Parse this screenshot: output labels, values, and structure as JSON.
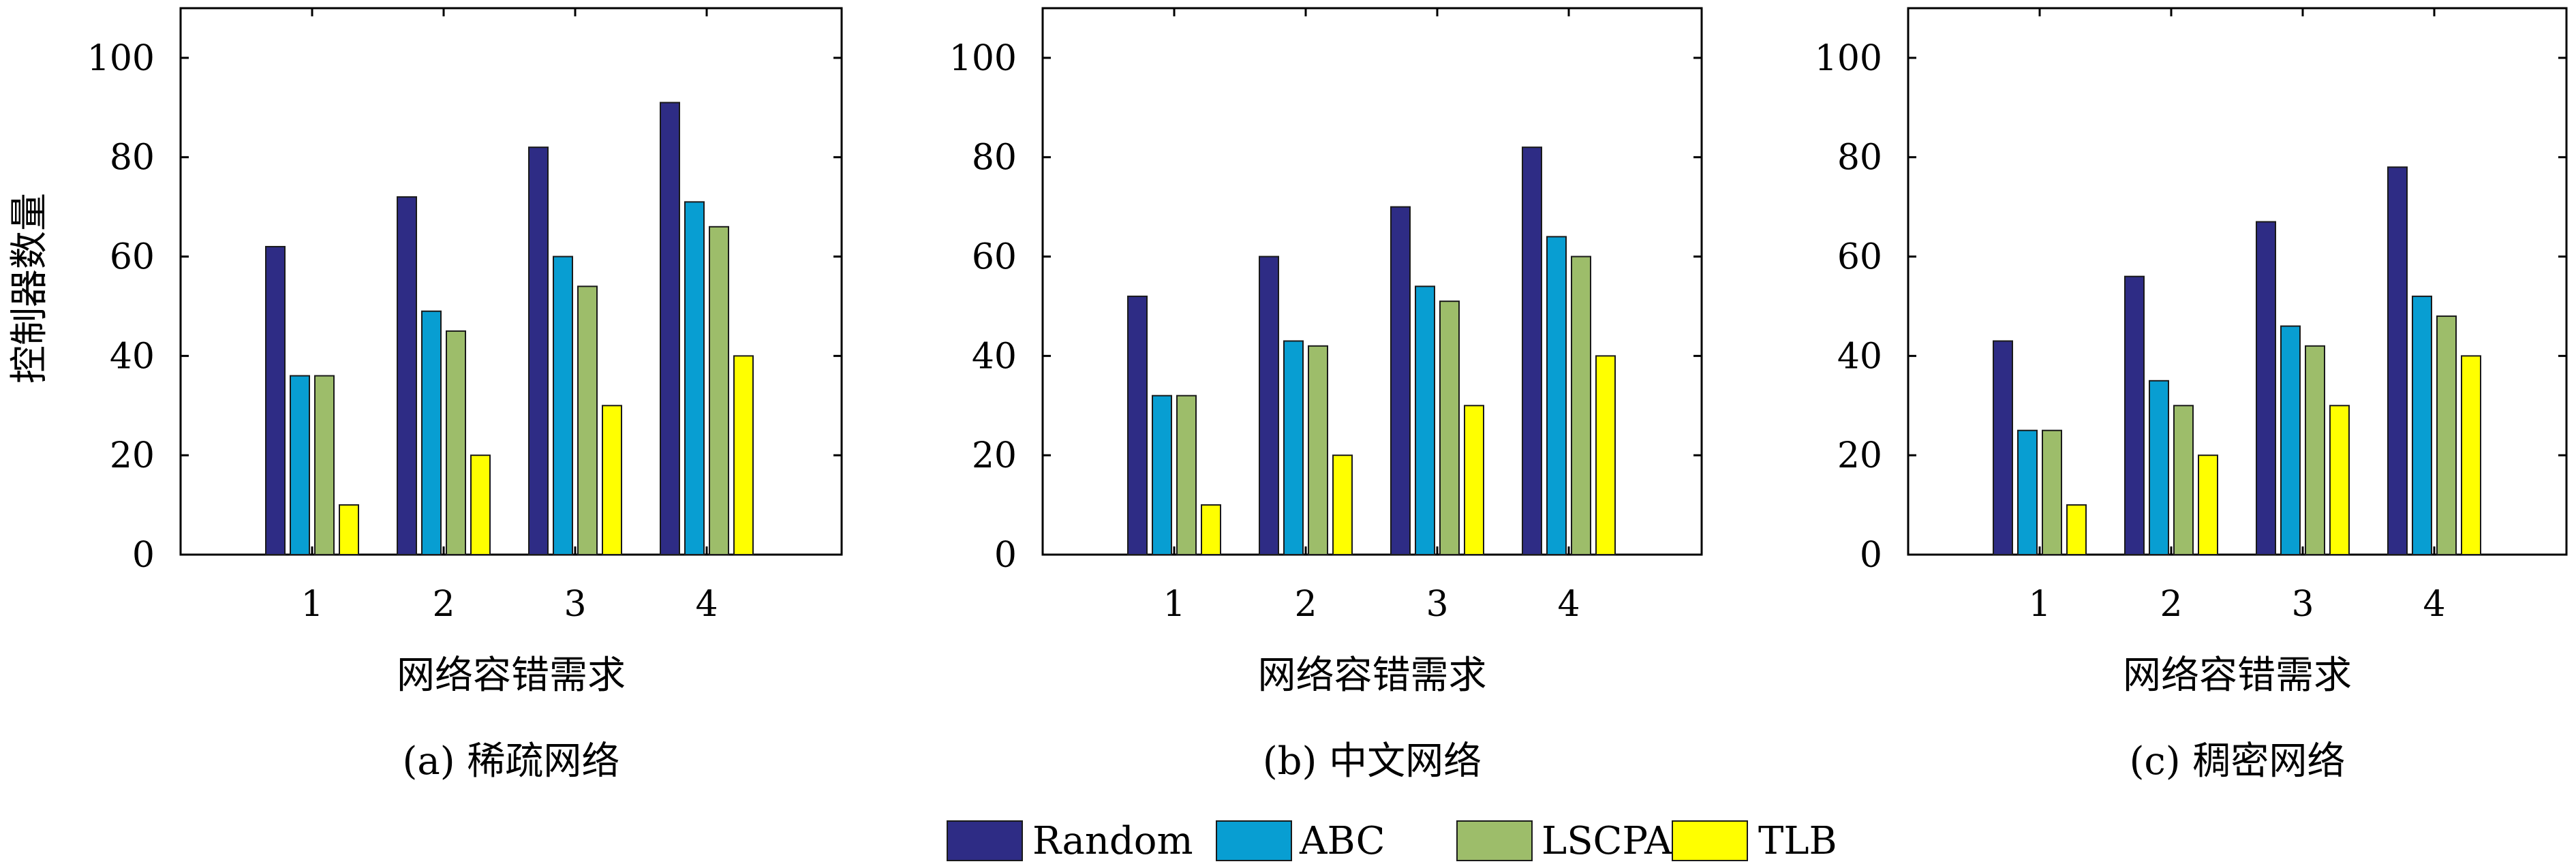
{
  "legend": [
    "Random",
    "ABC",
    "LSCPA",
    "TLB"
  ],
  "colors": {
    "Random": "#2e2c85",
    "ABC": "#089ed2",
    "LSCPA": "#9dbd6a",
    "TLB": "#ffff00"
  },
  "chart_data": [
    {
      "type": "bar",
      "categories": [
        "1",
        "2",
        "3",
        "4"
      ],
      "series": [
        {
          "name": "Random",
          "values": [
            62,
            72,
            82,
            91
          ]
        },
        {
          "name": "ABC",
          "values": [
            36,
            49,
            60,
            71
          ]
        },
        {
          "name": "LSCPA",
          "values": [
            36,
            45,
            54,
            66
          ]
        },
        {
          "name": "TLB",
          "values": [
            10,
            20,
            30,
            40
          ]
        }
      ],
      "ylim": [
        0,
        110
      ],
      "yticks": [
        0,
        20,
        40,
        60,
        80,
        100
      ],
      "xlabel": "网络容错需求",
      "ylabel": "控制器数量",
      "caption": "(a) 稀疏网络"
    },
    {
      "type": "bar",
      "categories": [
        "1",
        "2",
        "3",
        "4"
      ],
      "series": [
        {
          "name": "Random",
          "values": [
            52,
            60,
            70,
            82
          ]
        },
        {
          "name": "ABC",
          "values": [
            32,
            43,
            54,
            64
          ]
        },
        {
          "name": "LSCPA",
          "values": [
            32,
            42,
            51,
            60
          ]
        },
        {
          "name": "TLB",
          "values": [
            10,
            20,
            30,
            40
          ]
        }
      ],
      "ylim": [
        0,
        110
      ],
      "yticks": [
        0,
        20,
        40,
        60,
        80,
        100
      ],
      "xlabel": "网络容错需求",
      "ylabel": "",
      "caption": "(b) 中文网络"
    },
    {
      "type": "bar",
      "categories": [
        "1",
        "2",
        "3",
        "4"
      ],
      "series": [
        {
          "name": "Random",
          "values": [
            43,
            56,
            67,
            78
          ]
        },
        {
          "name": "ABC",
          "values": [
            25,
            35,
            46,
            52
          ]
        },
        {
          "name": "LSCPA",
          "values": [
            25,
            30,
            42,
            48
          ]
        },
        {
          "name": "TLB",
          "values": [
            10,
            20,
            30,
            40
          ]
        }
      ],
      "ylim": [
        0,
        110
      ],
      "yticks": [
        0,
        20,
        40,
        60,
        80,
        100
      ],
      "xlabel": "网络容错需求",
      "ylabel": "",
      "caption": "(c) 稠密网络"
    }
  ]
}
